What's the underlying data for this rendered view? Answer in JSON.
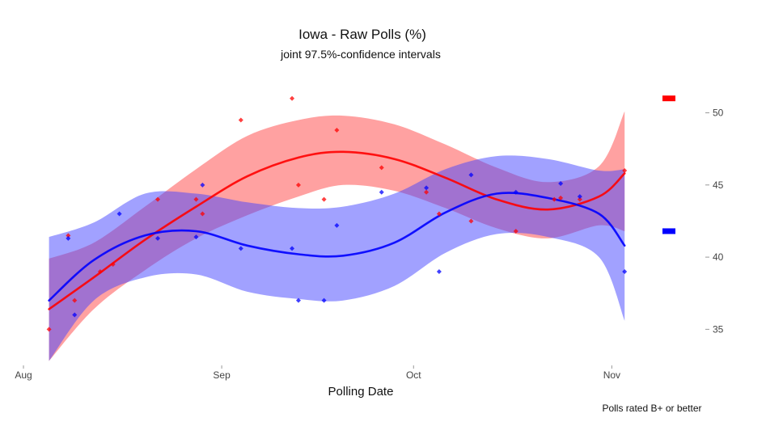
{
  "chart_data": {
    "type": "line",
    "title": "Iowa - Raw Polls (%)",
    "subtitle": "joint 97.5%-confidence intervals",
    "xlabel": "Polling Date",
    "caption": "Polls rated B+ or better",
    "x_domain": [
      "2020-08-01",
      "2020-11-05"
    ],
    "xlim": [
      "2020-08-01",
      "2020-11-05"
    ],
    "ylim": [
      32.5,
      53
    ],
    "x_ticks": [
      {
        "date": "2020-08-01",
        "label": "Aug"
      },
      {
        "date": "2020-09-01",
        "label": "Sep"
      },
      {
        "date": "2020-10-01",
        "label": "Oct"
      },
      {
        "date": "2020-11-01",
        "label": "Nov"
      }
    ],
    "y_ticks": [
      35,
      40,
      45,
      50
    ],
    "y_axis_position": "right",
    "grid": false,
    "legend_position": "right",
    "series": [
      {
        "color": "#ff0000",
        "band_color": "#ff4444",
        "band_opacity": 0.5,
        "legend_value": 51,
        "trend": [
          {
            "date": "2020-08-05",
            "y": 36.4,
            "lower": 32.8,
            "upper": 39.9
          },
          {
            "date": "2020-08-12",
            "y": 38.6,
            "lower": 36.4,
            "upper": 41.0
          },
          {
            "date": "2020-08-20",
            "y": 41.2,
            "lower": 39.1,
            "upper": 43.5
          },
          {
            "date": "2020-08-28",
            "y": 43.5,
            "lower": 41.3,
            "upper": 46.1
          },
          {
            "date": "2020-09-05",
            "y": 45.6,
            "lower": 42.9,
            "upper": 48.4
          },
          {
            "date": "2020-09-13",
            "y": 46.9,
            "lower": 44.2,
            "upper": 49.5
          },
          {
            "date": "2020-09-20",
            "y": 47.3,
            "lower": 45.0,
            "upper": 49.8
          },
          {
            "date": "2020-09-28",
            "y": 46.8,
            "lower": 44.6,
            "upper": 49.2
          },
          {
            "date": "2020-10-06",
            "y": 45.5,
            "lower": 43.4,
            "upper": 47.8
          },
          {
            "date": "2020-10-14",
            "y": 44.0,
            "lower": 42.0,
            "upper": 46.2
          },
          {
            "date": "2020-10-22",
            "y": 43.3,
            "lower": 41.3,
            "upper": 45.2
          },
          {
            "date": "2020-10-30",
            "y": 44.2,
            "lower": 42.2,
            "upper": 46.3
          },
          {
            "date": "2020-11-03",
            "y": 45.8,
            "lower": 41.8,
            "upper": 50.1
          }
        ],
        "points": [
          {
            "date": "2020-08-05",
            "y": 35
          },
          {
            "date": "2020-08-08",
            "y": 41.5
          },
          {
            "date": "2020-08-09",
            "y": 37
          },
          {
            "date": "2020-08-13",
            "y": 39
          },
          {
            "date": "2020-08-15",
            "y": 39.5
          },
          {
            "date": "2020-08-22",
            "y": 44
          },
          {
            "date": "2020-08-28",
            "y": 44
          },
          {
            "date": "2020-08-29",
            "y": 43
          },
          {
            "date": "2020-09-04",
            "y": 49.5
          },
          {
            "date": "2020-09-12",
            "y": 51
          },
          {
            "date": "2020-09-13",
            "y": 45
          },
          {
            "date": "2020-09-17",
            "y": 44
          },
          {
            "date": "2020-09-19",
            "y": 48.8
          },
          {
            "date": "2020-09-26",
            "y": 46.2
          },
          {
            "date": "2020-10-03",
            "y": 44.5
          },
          {
            "date": "2020-10-05",
            "y": 43
          },
          {
            "date": "2020-10-10",
            "y": 42.5
          },
          {
            "date": "2020-10-17",
            "y": 41.8
          },
          {
            "date": "2020-10-23",
            "y": 44
          },
          {
            "date": "2020-10-24",
            "y": 44.1
          },
          {
            "date": "2020-10-27",
            "y": 44
          },
          {
            "date": "2020-11-03",
            "y": 46
          }
        ]
      },
      {
        "color": "#0000ff",
        "band_color": "#4444ff",
        "band_opacity": 0.5,
        "legend_value": 41.8,
        "trend": [
          {
            "date": "2020-08-05",
            "y": 37.0,
            "lower": 32.8,
            "upper": 41.4
          },
          {
            "date": "2020-08-12",
            "y": 39.8,
            "lower": 37.0,
            "upper": 42.4
          },
          {
            "date": "2020-08-20",
            "y": 41.5,
            "lower": 38.6,
            "upper": 44.4
          },
          {
            "date": "2020-08-28",
            "y": 41.8,
            "lower": 38.8,
            "upper": 44.4
          },
          {
            "date": "2020-09-05",
            "y": 40.8,
            "lower": 37.6,
            "upper": 43.8
          },
          {
            "date": "2020-09-13",
            "y": 40.2,
            "lower": 37.1,
            "upper": 43.4
          },
          {
            "date": "2020-09-20",
            "y": 40.1,
            "lower": 37.0,
            "upper": 43.5
          },
          {
            "date": "2020-09-28",
            "y": 41.0,
            "lower": 38.0,
            "upper": 44.4
          },
          {
            "date": "2020-10-06",
            "y": 43.1,
            "lower": 40.3,
            "upper": 46.1
          },
          {
            "date": "2020-10-14",
            "y": 44.4,
            "lower": 41.6,
            "upper": 47.0
          },
          {
            "date": "2020-10-22",
            "y": 44.1,
            "lower": 41.4,
            "upper": 46.8
          },
          {
            "date": "2020-10-30",
            "y": 43.0,
            "lower": 40.0,
            "upper": 46.0
          },
          {
            "date": "2020-11-03",
            "y": 40.8,
            "lower": 35.6,
            "upper": 46.1
          }
        ],
        "points": [
          {
            "date": "2020-08-08",
            "y": 41.3
          },
          {
            "date": "2020-08-09",
            "y": 36
          },
          {
            "date": "2020-08-16",
            "y": 43
          },
          {
            "date": "2020-08-22",
            "y": 41.3
          },
          {
            "date": "2020-08-28",
            "y": 41.4
          },
          {
            "date": "2020-08-29",
            "y": 45
          },
          {
            "date": "2020-09-04",
            "y": 40.6
          },
          {
            "date": "2020-09-12",
            "y": 40.6
          },
          {
            "date": "2020-09-13",
            "y": 37
          },
          {
            "date": "2020-09-17",
            "y": 37
          },
          {
            "date": "2020-09-19",
            "y": 42.2
          },
          {
            "date": "2020-09-26",
            "y": 44.5
          },
          {
            "date": "2020-10-03",
            "y": 44.8
          },
          {
            "date": "2020-10-05",
            "y": 39
          },
          {
            "date": "2020-10-10",
            "y": 45.7
          },
          {
            "date": "2020-10-17",
            "y": 44.5
          },
          {
            "date": "2020-10-24",
            "y": 45.1
          },
          {
            "date": "2020-10-27",
            "y": 44.2
          },
          {
            "date": "2020-11-03",
            "y": 39
          }
        ]
      }
    ]
  }
}
